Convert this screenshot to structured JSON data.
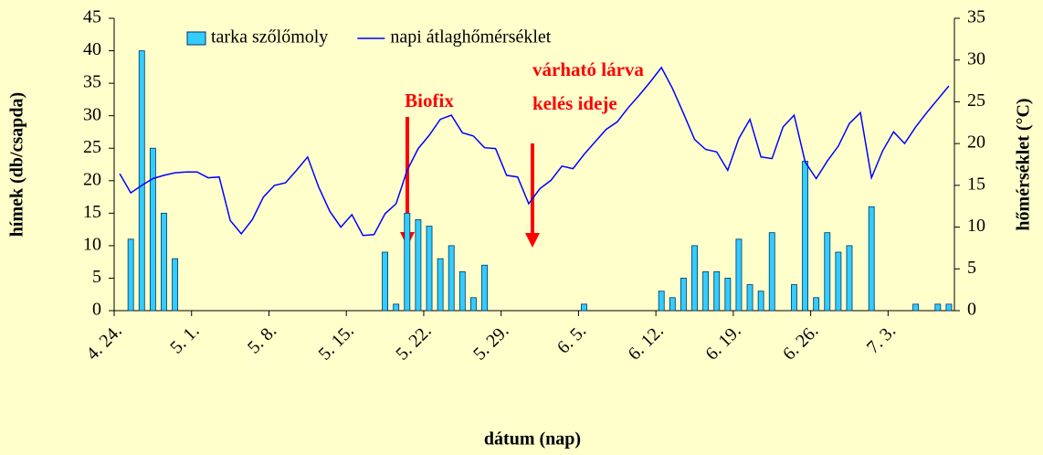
{
  "chart_data": {
    "type": "bar",
    "xlabel": "dátum (nap)",
    "ylabel": "hímek (db/csapda)",
    "y2label": "hőmérséklet (°C)",
    "annotations": [
      "Biofix",
      "várható lárva",
      "kelés ideje"
    ],
    "categories": [
      "4. 24.",
      null,
      null,
      null,
      null,
      null,
      null,
      "5. 1.",
      null,
      null,
      null,
      null,
      null,
      null,
      "5. 8.",
      null,
      null,
      null,
      null,
      null,
      null,
      "5. 15.",
      null,
      null,
      null,
      null,
      null,
      null,
      "5. 22.",
      null,
      null,
      null,
      null,
      null,
      null,
      "5. 29.",
      null,
      null,
      null,
      null,
      null,
      null,
      "6. 5.",
      null,
      null,
      null,
      null,
      null,
      null,
      "6. 12.",
      null,
      null,
      null,
      null,
      null,
      null,
      "6. 19.",
      null,
      null,
      null,
      null,
      null,
      null,
      "6. 26.",
      null,
      null,
      null,
      null,
      null,
      null,
      "7. 3.",
      null,
      null,
      null,
      null,
      null
    ],
    "series": [
      {
        "name": "tarka szőlőmoly",
        "type": "bar",
        "color": "#33ccff",
        "values": [
          null,
          11,
          40,
          25,
          15,
          8,
          null,
          null,
          null,
          null,
          null,
          null,
          null,
          null,
          null,
          null,
          null,
          null,
          null,
          null,
          null,
          null,
          null,
          null,
          9,
          1,
          15,
          14,
          13,
          8,
          10,
          6,
          2,
          7,
          null,
          null,
          null,
          null,
          null,
          null,
          null,
          null,
          1,
          null,
          null,
          null,
          null,
          null,
          null,
          3,
          2,
          5,
          10,
          6,
          6,
          5,
          11,
          4,
          3,
          12,
          null,
          4,
          23,
          2,
          12,
          9,
          10,
          null,
          16,
          null,
          null,
          null,
          1,
          null,
          1,
          1
        ]
      },
      {
        "name": "napi átlaghőmérséklet",
        "type": "line",
        "axis": "y2",
        "color": "#0000ff",
        "values": [
          16.4,
          14.1,
          15.0,
          15.8,
          16.2,
          16.5,
          16.6,
          16.6,
          15.9,
          16.0,
          10.8,
          9.2,
          10.9,
          13.6,
          15.0,
          15.3,
          16.8,
          18.4,
          14.8,
          11.9,
          10.0,
          11.5,
          9.0,
          9.1,
          11.6,
          12.8,
          16.8,
          19.4,
          21.0,
          22.9,
          23.4,
          21.3,
          20.9,
          19.5,
          19.4,
          16.2,
          16.0,
          12.8,
          14.6,
          15.6,
          17.3,
          17.0,
          18.7,
          20.2,
          21.7,
          22.6,
          24.3,
          25.8,
          27.4,
          29.1,
          26.6,
          23.6,
          20.5,
          19.3,
          19.0,
          16.8,
          20.6,
          22.9,
          18.4,
          18.2,
          22.0,
          23.4,
          17.8,
          15.8,
          17.9,
          19.7,
          22.4,
          23.7,
          15.9,
          19.1,
          21.4,
          20.0,
          22.0,
          23.7,
          25.3,
          26.9
        ]
      }
    ],
    "ylim": [
      0,
      45
    ],
    "yticks": [
      0,
      5,
      10,
      15,
      20,
      25,
      30,
      35,
      40,
      45
    ],
    "y2lim": [
      0,
      35
    ],
    "y2ticks": [
      0,
      5,
      10,
      15,
      20,
      25,
      30,
      35
    ],
    "grid": false
  }
}
